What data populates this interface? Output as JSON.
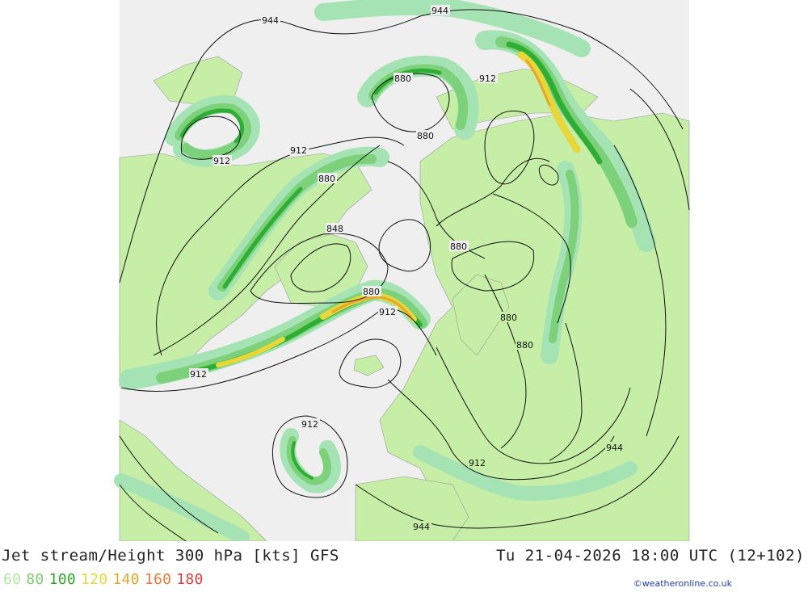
{
  "title": "Jet stream/Height 300 hPa [kts] GFS",
  "valid_time": "Tu 21-04-2026 18:00 UTC (12+102)",
  "credit": "©weatheronline.co.uk",
  "legend": [
    {
      "label": "60",
      "color": "#b4e6a0"
    },
    {
      "label": "80",
      "color": "#7ccf6a"
    },
    {
      "label": "100",
      "color": "#2fa82a"
    },
    {
      "label": "120",
      "color": "#e8d73a"
    },
    {
      "label": "140",
      "color": "#e6a62c"
    },
    {
      "label": "160",
      "color": "#e87a3a"
    },
    {
      "label": "180",
      "color": "#e03c3c"
    }
  ],
  "contour_labels": [
    "944",
    "944",
    "912",
    "880",
    "880",
    "912",
    "912",
    "880",
    "848",
    "880",
    "880",
    "912",
    "880",
    "880",
    "912",
    "912",
    "944",
    "912",
    "944"
  ],
  "colors": {
    "ocean": "#efefef",
    "land": "#c6eea6",
    "jet60": "#a6e3b4",
    "jet80": "#7cd17a",
    "jet100": "#2fae36",
    "jet120": "#e8d73a",
    "jet140": "#e6a62c"
  }
}
